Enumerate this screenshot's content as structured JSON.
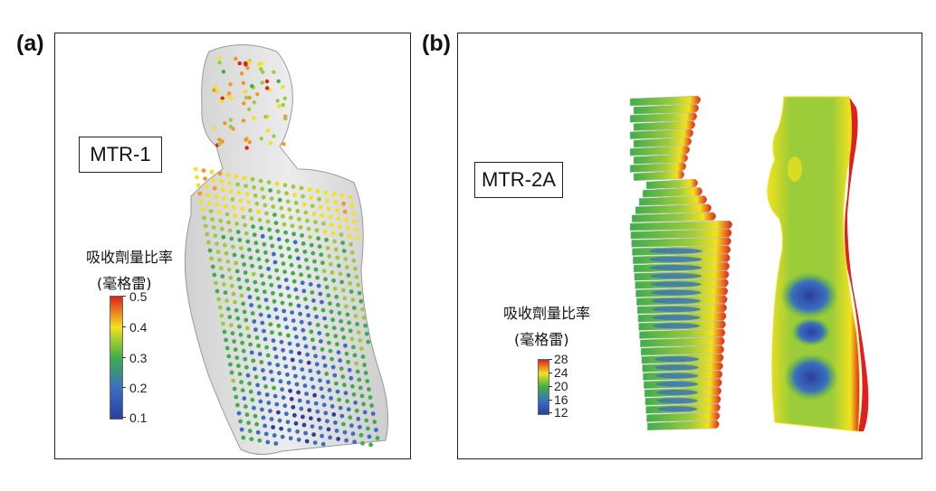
{
  "panels": [
    {
      "label": "(a)",
      "model": "MTR-1",
      "colorbar": {
        "title": "吸收劑量比率",
        "unit": "(毫格雷)",
        "ticks": [
          "0.5",
          "0.4",
          "0.3",
          "0.2",
          "0.1"
        ],
        "min": 0.1,
        "max": 0.5
      }
    },
    {
      "label": "(b)",
      "model": "MTR-2A",
      "colorbar": {
        "title": "吸收劑量比率",
        "unit": "(毫格雷)",
        "ticks": [
          "28",
          "24",
          "20",
          "16",
          "12"
        ],
        "min": 12,
        "max": 28
      }
    }
  ],
  "colormap": [
    "#2b3f9e",
    "#3a6fc0",
    "#3fae4a",
    "#9ccc3a",
    "#f2e21c",
    "#f39a1e",
    "#e02020"
  ]
}
